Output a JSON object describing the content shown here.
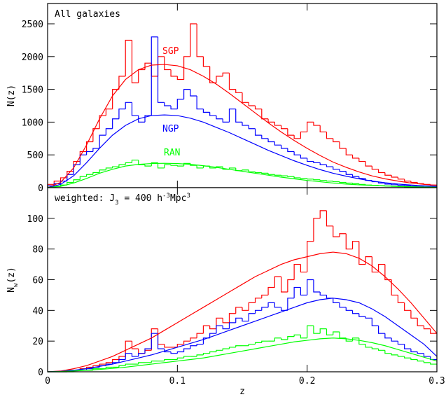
{
  "chart_data": [
    {
      "type": "histogram",
      "annotation": [
        "All galaxies"
      ],
      "ylabel": [
        "N(z)"
      ],
      "xlim": [
        0,
        0.3
      ],
      "xticks": [
        0,
        0.1,
        0.2,
        0.3
      ],
      "xtick_labels": false,
      "ylim": [
        0,
        2810
      ],
      "yticks": [
        0,
        500,
        1000,
        1500,
        2000,
        2500
      ],
      "bins": [
        0,
        0.005,
        0.01,
        0.015,
        0.02,
        0.025,
        0.03,
        0.035,
        0.04,
        0.045,
        0.05,
        0.055,
        0.06,
        0.065,
        0.07,
        0.075,
        0.08,
        0.085,
        0.09,
        0.095,
        0.1,
        0.105,
        0.11,
        0.115,
        0.12,
        0.125,
        0.13,
        0.135,
        0.14,
        0.145,
        0.15,
        0.155,
        0.16,
        0.165,
        0.17,
        0.175,
        0.18,
        0.185,
        0.19,
        0.195,
        0.2,
        0.205,
        0.21,
        0.215,
        0.22,
        0.225,
        0.23,
        0.235,
        0.24,
        0.245,
        0.25,
        0.255,
        0.26,
        0.265,
        0.27,
        0.275,
        0.28,
        0.285,
        0.29,
        0.295,
        0.3
      ],
      "series": [
        {
          "name": "SGP",
          "color": "#ff0000",
          "values": [
            50,
            100,
            150,
            250,
            400,
            550,
            700,
            900,
            1100,
            1200,
            1500,
            1700,
            2250,
            1600,
            1800,
            1900,
            1700,
            2000,
            1800,
            1700,
            1650,
            2000,
            2500,
            2000,
            1850,
            1600,
            1700,
            1750,
            1500,
            1450,
            1300,
            1250,
            1200,
            1050,
            1000,
            950,
            900,
            800,
            750,
            850,
            1000,
            950,
            850,
            750,
            700,
            600,
            500,
            450,
            400,
            330,
            280,
            230,
            190,
            160,
            130,
            100,
            80,
            60,
            50,
            40
          ]
        },
        {
          "name": "NGP",
          "color": "#0000ff",
          "values": [
            30,
            60,
            100,
            200,
            350,
            500,
            550,
            600,
            800,
            900,
            1050,
            1200,
            1300,
            1100,
            1000,
            1100,
            2300,
            1300,
            1250,
            1200,
            1350,
            1500,
            1400,
            1200,
            1150,
            1100,
            1050,
            1000,
            1200,
            1000,
            950,
            900,
            800,
            750,
            700,
            650,
            600,
            550,
            500,
            450,
            400,
            380,
            350,
            320,
            280,
            250,
            200,
            170,
            140,
            110,
            90,
            70,
            55,
            45,
            35,
            28,
            22,
            17,
            13,
            10
          ]
        },
        {
          "name": "RAN",
          "color": "#00ff00",
          "values": [
            10,
            20,
            40,
            80,
            120,
            170,
            200,
            230,
            270,
            300,
            320,
            350,
            380,
            420,
            350,
            330,
            380,
            300,
            350,
            340,
            330,
            370,
            340,
            300,
            330,
            300,
            320,
            280,
            300,
            260,
            270,
            240,
            230,
            220,
            200,
            190,
            180,
            170,
            150,
            140,
            130,
            120,
            110,
            100,
            90,
            80,
            70,
            60,
            50,
            40,
            35,
            30,
            25,
            20,
            16,
            13,
            10,
            8,
            6,
            5
          ]
        }
      ],
      "fit_x": [
        0,
        0.01,
        0.02,
        0.03,
        0.04,
        0.05,
        0.06,
        0.07,
        0.08,
        0.09,
        0.1,
        0.11,
        0.12,
        0.13,
        0.14,
        0.15,
        0.16,
        0.17,
        0.18,
        0.19,
        0.2,
        0.21,
        0.22,
        0.23,
        0.24,
        0.25,
        0.26,
        0.27,
        0.28,
        0.29,
        0.3
      ],
      "fits": [
        {
          "color": "#ff0000",
          "values": [
            0,
            80,
            300,
            650,
            1050,
            1400,
            1650,
            1800,
            1870,
            1880,
            1860,
            1800,
            1700,
            1580,
            1440,
            1290,
            1140,
            990,
            850,
            720,
            600,
            490,
            390,
            310,
            240,
            180,
            135,
            100,
            70,
            50,
            35
          ]
        },
        {
          "color": "#0000ff",
          "values": [
            0,
            50,
            180,
            380,
            600,
            800,
            950,
            1050,
            1100,
            1110,
            1100,
            1060,
            1000,
            920,
            840,
            750,
            660,
            570,
            490,
            410,
            340,
            275,
            220,
            175,
            135,
            100,
            75,
            55,
            40,
            28,
            20
          ]
        },
        {
          "color": "#00ff00",
          "values": [
            0,
            20,
            70,
            140,
            220,
            280,
            330,
            355,
            368,
            372,
            368,
            355,
            335,
            310,
            280,
            250,
            220,
            190,
            160,
            135,
            110,
            90,
            70,
            55,
            43,
            33,
            25,
            18,
            13,
            9,
            6
          ]
        }
      ]
    },
    {
      "type": "histogram",
      "annotation": [
        "weighted: J",
        "3",
        " = 400 h",
        "-3",
        "Mpc",
        "3"
      ],
      "ylabel": [
        "N",
        "w",
        "(z)"
      ],
      "xlabel": "z",
      "xlim": [
        0,
        0.3
      ],
      "xticks": [
        0,
        0.1,
        0.2,
        0.3
      ],
      "xtick_labels": true,
      "ylim": [
        0,
        120
      ],
      "yticks": [
        0,
        20,
        40,
        60,
        80,
        100
      ],
      "bins": [
        0,
        0.005,
        0.01,
        0.015,
        0.02,
        0.025,
        0.03,
        0.035,
        0.04,
        0.045,
        0.05,
        0.055,
        0.06,
        0.065,
        0.07,
        0.075,
        0.08,
        0.085,
        0.09,
        0.095,
        0.1,
        0.105,
        0.11,
        0.115,
        0.12,
        0.125,
        0.13,
        0.135,
        0.14,
        0.145,
        0.15,
        0.155,
        0.16,
        0.165,
        0.17,
        0.175,
        0.18,
        0.185,
        0.19,
        0.195,
        0.2,
        0.205,
        0.21,
        0.215,
        0.22,
        0.225,
        0.23,
        0.235,
        0.24,
        0.245,
        0.25,
        0.255,
        0.26,
        0.265,
        0.27,
        0.275,
        0.28,
        0.285,
        0.29,
        0.295,
        0.3
      ],
      "series": [
        {
          "color": "#ff0000",
          "values": [
            0,
            0,
            0,
            1,
            1,
            2,
            3,
            4,
            5,
            6,
            8,
            10,
            20,
            15,
            12,
            14,
            28,
            18,
            16,
            16,
            18,
            20,
            22,
            25,
            30,
            28,
            35,
            32,
            38,
            42,
            40,
            45,
            48,
            50,
            55,
            62,
            52,
            60,
            70,
            65,
            85,
            100,
            105,
            95,
            88,
            90,
            80,
            85,
            70,
            75,
            65,
            70,
            60,
            50,
            45,
            40,
            35,
            30,
            28,
            25
          ]
        },
        {
          "color": "#0000ff",
          "values": [
            0,
            0,
            0,
            1,
            1,
            1,
            2,
            3,
            4,
            5,
            6,
            8,
            12,
            10,
            12,
            15,
            25,
            15,
            13,
            12,
            13,
            15,
            17,
            18,
            22,
            25,
            30,
            28,
            32,
            35,
            33,
            38,
            40,
            42,
            45,
            42,
            40,
            48,
            55,
            50,
            60,
            52,
            50,
            48,
            45,
            42,
            40,
            38,
            36,
            35,
            30,
            25,
            22,
            20,
            18,
            15,
            13,
            12,
            10,
            8
          ]
        },
        {
          "color": "#00ff00",
          "values": [
            0,
            0,
            0,
            0,
            1,
            1,
            1,
            2,
            2,
            3,
            3,
            4,
            5,
            5,
            6,
            6,
            7,
            7,
            8,
            8,
            9,
            10,
            10,
            11,
            12,
            13,
            14,
            15,
            16,
            17,
            17,
            18,
            19,
            20,
            20,
            22,
            21,
            23,
            24,
            22,
            30,
            25,
            28,
            24,
            26,
            22,
            20,
            22,
            18,
            16,
            15,
            14,
            12,
            11,
            10,
            9,
            8,
            7,
            6,
            5
          ]
        }
      ],
      "fit_x": [
        0,
        0.01,
        0.02,
        0.03,
        0.04,
        0.05,
        0.06,
        0.07,
        0.08,
        0.09,
        0.1,
        0.11,
        0.12,
        0.13,
        0.14,
        0.15,
        0.16,
        0.17,
        0.18,
        0.19,
        0.2,
        0.21,
        0.22,
        0.23,
        0.24,
        0.25,
        0.26,
        0.27,
        0.28,
        0.29,
        0.3
      ],
      "fits": [
        {
          "color": "#ff0000",
          "values": [
            0,
            0.5,
            2,
            4,
            7,
            10,
            14,
            18,
            22,
            27,
            32,
            37,
            42,
            47,
            52,
            57,
            62,
            66,
            70,
            73,
            75,
            77,
            78,
            77,
            74,
            69,
            62,
            54,
            45,
            35,
            25
          ]
        },
        {
          "color": "#0000ff",
          "values": [
            0,
            0.3,
            1,
            2,
            3.5,
            5,
            7,
            9,
            11,
            13.5,
            16,
            18.5,
            21,
            24,
            27,
            30,
            33,
            36,
            39,
            42,
            45,
            47,
            48,
            47,
            45,
            41,
            36,
            30,
            24,
            18,
            10
          ]
        },
        {
          "color": "#00ff00",
          "values": [
            0,
            0.2,
            0.5,
            1,
            1.5,
            2.2,
            3,
            4,
            5,
            6,
            7,
            8,
            9,
            10.5,
            12,
            13.5,
            15,
            16.5,
            18,
            19.5,
            20.5,
            21.5,
            22,
            21.5,
            20.5,
            19,
            17,
            14.5,
            12,
            9.5,
            7
          ]
        }
      ]
    }
  ]
}
